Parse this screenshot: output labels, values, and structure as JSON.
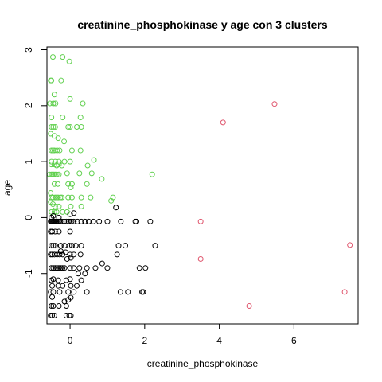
{
  "chart_data": {
    "type": "scatter",
    "title": "creatinine_phosphokinase  y  age con  3  clusters",
    "xlabel": "creatinine_phosphokinase",
    "ylabel": "age",
    "xlim": [
      -0.62,
      7.72
    ],
    "ylim": [
      -1.9,
      3.05
    ],
    "x_ticks": [
      0,
      2,
      4,
      6
    ],
    "y_ticks": [
      -1,
      0,
      1,
      2,
      3
    ],
    "x_tick_labels": [
      "0",
      "2",
      "4",
      "6"
    ],
    "y_tick_labels": [
      "-1",
      "0",
      "1",
      "2",
      "3"
    ],
    "grid": false,
    "legend": "none",
    "marker": "open-circle",
    "colors": {
      "cluster_1": "#000000",
      "cluster_2": "#df536b",
      "cluster_3": "#61d04f"
    },
    "series": [
      {
        "color": "#61d04f",
        "points": [
          [
            -0.46,
            2.87
          ],
          [
            -0.2,
            2.87
          ],
          [
            -0.02,
            2.79
          ],
          [
            -0.52,
            2.45
          ],
          [
            -0.5,
            2.45
          ],
          [
            -0.24,
            2.45
          ],
          [
            -0.42,
            2.2
          ],
          [
            -0.54,
            2.04
          ],
          [
            -0.45,
            2.04
          ],
          [
            -0.39,
            2.04
          ],
          [
            0.0,
            2.12
          ],
          [
            0.34,
            2.04
          ],
          [
            -0.5,
            1.79
          ],
          [
            -0.2,
            1.79
          ],
          [
            0.28,
            1.79
          ],
          [
            -0.5,
            1.62
          ],
          [
            -0.45,
            1.62
          ],
          [
            -0.4,
            1.62
          ],
          [
            -0.05,
            1.62
          ],
          [
            0.0,
            1.62
          ],
          [
            0.18,
            1.62
          ],
          [
            0.3,
            1.62
          ],
          [
            -0.52,
            1.5
          ],
          [
            -0.42,
            1.46
          ],
          [
            -0.32,
            1.42
          ],
          [
            -0.16,
            1.36
          ],
          [
            -0.5,
            1.2
          ],
          [
            -0.46,
            1.2
          ],
          [
            -0.42,
            1.2
          ],
          [
            -0.35,
            1.2
          ],
          [
            -0.28,
            1.2
          ],
          [
            0.05,
            1.2
          ],
          [
            0.28,
            1.2
          ],
          [
            -0.5,
            1.0
          ],
          [
            -0.4,
            1.0
          ],
          [
            -0.3,
            1.0
          ],
          [
            -0.15,
            1.0
          ],
          [
            0.0,
            1.0
          ],
          [
            0.64,
            1.03
          ],
          [
            -0.5,
            0.95
          ],
          [
            -0.42,
            0.95
          ],
          [
            -0.36,
            0.93
          ],
          [
            -0.3,
            0.95
          ],
          [
            -0.22,
            0.93
          ],
          [
            0.47,
            0.93
          ],
          [
            -0.55,
            0.77
          ],
          [
            -0.5,
            0.77
          ],
          [
            -0.47,
            0.77
          ],
          [
            -0.44,
            0.77
          ],
          [
            -0.4,
            0.77
          ],
          [
            -0.36,
            0.77
          ],
          [
            -0.3,
            0.77
          ],
          [
            -0.08,
            0.79
          ],
          [
            0.25,
            0.79
          ],
          [
            0.58,
            0.79
          ],
          [
            0.85,
            0.69
          ],
          [
            2.2,
            0.77
          ],
          [
            -0.42,
            0.6
          ],
          [
            -0.33,
            0.6
          ],
          [
            -0.05,
            0.6
          ],
          [
            0.05,
            0.6
          ],
          [
            0.45,
            0.6
          ],
          [
            0.02,
            0.54
          ],
          [
            -0.52,
            0.44
          ],
          [
            -0.5,
            0.36
          ],
          [
            -0.46,
            0.36
          ],
          [
            -0.4,
            0.36
          ],
          [
            -0.36,
            0.36
          ],
          [
            -0.32,
            0.36
          ],
          [
            -0.26,
            0.36
          ],
          [
            -0.22,
            0.36
          ],
          [
            -0.05,
            0.36
          ],
          [
            0.05,
            0.36
          ],
          [
            0.3,
            0.36
          ],
          [
            0.55,
            0.36
          ],
          [
            1.15,
            0.36
          ],
          [
            1.1,
            0.3
          ],
          [
            -0.52,
            0.28
          ],
          [
            -0.46,
            0.24
          ],
          [
            -0.4,
            0.2
          ],
          [
            -0.3,
            0.2
          ],
          [
            0.02,
            0.2
          ],
          [
            0.3,
            0.2
          ],
          [
            -0.5,
            0.1
          ],
          [
            -0.42,
            0.1
          ],
          [
            -0.36,
            0.1
          ],
          [
            -0.2,
            0.1
          ],
          [
            -0.08,
            0.1
          ]
        ]
      },
      {
        "color": "#000000",
        "points": [
          [
            -0.52,
            -0.07
          ],
          [
            -0.5,
            -0.07
          ],
          [
            -0.48,
            -0.07
          ],
          [
            -0.46,
            -0.07
          ],
          [
            -0.44,
            -0.07
          ],
          [
            -0.42,
            -0.07
          ],
          [
            -0.4,
            -0.07
          ],
          [
            -0.37,
            -0.07
          ],
          [
            -0.34,
            -0.07
          ],
          [
            -0.3,
            -0.07
          ],
          [
            -0.26,
            -0.07
          ],
          [
            -0.22,
            -0.07
          ],
          [
            -0.16,
            -0.07
          ],
          [
            -0.1,
            -0.07
          ],
          [
            -0.04,
            -0.07
          ],
          [
            0.0,
            -0.07
          ],
          [
            0.04,
            -0.07
          ],
          [
            0.1,
            -0.07
          ],
          [
            0.2,
            -0.07
          ],
          [
            0.3,
            -0.07
          ],
          [
            0.4,
            -0.07
          ],
          [
            0.5,
            -0.07
          ],
          [
            0.62,
            -0.07
          ],
          [
            0.78,
            -0.07
          ],
          [
            1.0,
            -0.07
          ],
          [
            1.36,
            -0.07
          ],
          [
            1.75,
            -0.07
          ],
          [
            1.78,
            -0.07
          ],
          [
            2.15,
            -0.07
          ],
          [
            -0.5,
            0.0
          ],
          [
            -0.45,
            0.03
          ],
          [
            -0.3,
            0.0
          ],
          [
            0.1,
            0.08
          ],
          [
            0.0,
            0.06
          ],
          [
            1.23,
            0.18
          ],
          [
            -0.52,
            -0.25
          ],
          [
            -0.48,
            -0.25
          ],
          [
            -0.4,
            -0.25
          ],
          [
            -0.3,
            -0.25
          ],
          [
            0.0,
            -0.25
          ],
          [
            -0.5,
            -0.5
          ],
          [
            -0.45,
            -0.5
          ],
          [
            -0.4,
            -0.5
          ],
          [
            -0.25,
            -0.5
          ],
          [
            -0.15,
            -0.5
          ],
          [
            -0.02,
            -0.5
          ],
          [
            0.05,
            -0.5
          ],
          [
            0.15,
            -0.5
          ],
          [
            0.3,
            -0.5
          ],
          [
            1.3,
            -0.5
          ],
          [
            1.48,
            -0.5
          ],
          [
            2.28,
            -0.5
          ],
          [
            -0.25,
            -0.6
          ],
          [
            -0.12,
            -0.62
          ],
          [
            -0.52,
            -0.66
          ],
          [
            -0.48,
            -0.66
          ],
          [
            -0.42,
            -0.66
          ],
          [
            -0.35,
            -0.66
          ],
          [
            -0.28,
            -0.66
          ],
          [
            -0.2,
            -0.66
          ],
          [
            0.0,
            -0.66
          ],
          [
            0.1,
            -0.66
          ],
          [
            0.28,
            -0.66
          ],
          [
            1.26,
            -0.66
          ],
          [
            -0.08,
            -0.74
          ],
          [
            0.02,
            -0.72
          ],
          [
            0.86,
            -0.82
          ],
          [
            -0.5,
            -0.9
          ],
          [
            -0.45,
            -0.9
          ],
          [
            -0.4,
            -0.9
          ],
          [
            -0.35,
            -0.9
          ],
          [
            -0.3,
            -0.9
          ],
          [
            -0.25,
            -0.9
          ],
          [
            -0.2,
            -0.9
          ],
          [
            -0.15,
            -0.9
          ],
          [
            0.0,
            -0.9
          ],
          [
            0.1,
            -0.9
          ],
          [
            0.25,
            -0.9
          ],
          [
            0.45,
            -0.9
          ],
          [
            0.68,
            -0.9
          ],
          [
            1.0,
            -0.9
          ],
          [
            1.86,
            -0.9
          ],
          [
            2.02,
            -0.9
          ],
          [
            0.22,
            -1.0
          ],
          [
            0.4,
            -1.0
          ],
          [
            -0.5,
            -1.12
          ],
          [
            -0.45,
            -1.1
          ],
          [
            -0.32,
            -1.12
          ],
          [
            -0.1,
            -1.12
          ],
          [
            0.0,
            -1.1
          ],
          [
            0.3,
            -1.12
          ],
          [
            -0.48,
            -1.22
          ],
          [
            -0.32,
            -1.22
          ],
          [
            -0.2,
            -1.22
          ],
          [
            0.02,
            -1.22
          ],
          [
            0.18,
            -1.22
          ],
          [
            -0.52,
            -1.33
          ],
          [
            -0.45,
            -1.33
          ],
          [
            -0.28,
            -1.33
          ],
          [
            -0.05,
            -1.33
          ],
          [
            0.1,
            -1.33
          ],
          [
            0.45,
            -1.33
          ],
          [
            1.35,
            -1.33
          ],
          [
            1.55,
            -1.33
          ],
          [
            1.93,
            -1.33
          ],
          [
            1.96,
            -1.33
          ],
          [
            -0.48,
            -1.42
          ],
          [
            -0.15,
            -1.5
          ],
          [
            -0.05,
            -1.47
          ],
          [
            0.02,
            -1.43
          ],
          [
            -0.5,
            -1.58
          ],
          [
            -0.45,
            -1.58
          ],
          [
            -0.3,
            -1.58
          ],
          [
            -0.1,
            -1.58
          ],
          [
            -0.52,
            -1.75
          ],
          [
            -0.48,
            -1.75
          ],
          [
            -0.42,
            -1.75
          ],
          [
            -0.1,
            -1.75
          ],
          [
            -0.02,
            -1.75
          ],
          [
            0.02,
            -1.75
          ]
        ]
      },
      {
        "color": "#df536b",
        "points": [
          [
            5.48,
            2.03
          ],
          [
            4.1,
            1.7
          ],
          [
            3.5,
            -0.07
          ],
          [
            7.5,
            -0.49
          ],
          [
            3.5,
            -0.74
          ],
          [
            7.36,
            -1.33
          ],
          [
            4.8,
            -1.58
          ]
        ]
      }
    ]
  }
}
